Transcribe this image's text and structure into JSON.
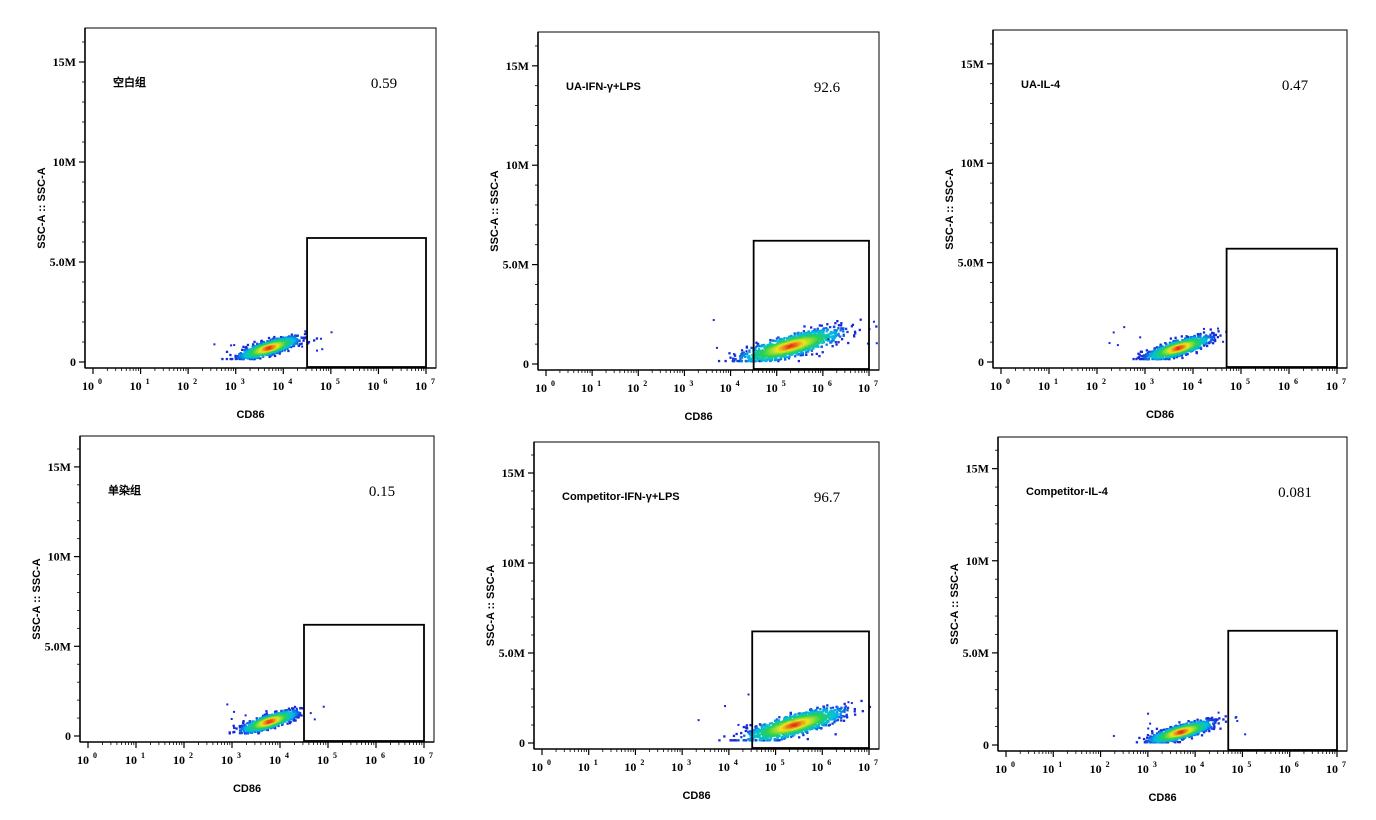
{
  "chart_data": [
    {
      "type": "scatter",
      "sample_label": "空白组",
      "gate_percent": "0.59",
      "xlabel": "CD86",
      "ylabel": "SSC-A :: SSC-A",
      "x_scale": "log",
      "xlim": [
        1,
        10000000
      ],
      "ylim": [
        0,
        16500000
      ],
      "x_tick_labels": [
        "10^0",
        "10^1",
        "10^2",
        "10^3",
        "10^4",
        "10^5",
        "10^6",
        "10^7"
      ],
      "y_tick_labels": [
        "0",
        "5.0M",
        "10M",
        "15M"
      ],
      "gate": {
        "x": [
          31623,
          10000000
        ],
        "y": [
          0,
          6200000
        ]
      },
      "population": {
        "center_x": 5000,
        "center_y": 700000,
        "spread_x_decades": 0.28,
        "spread_y": 350000
      }
    },
    {
      "type": "scatter",
      "sample_label": "UA-IFN-γ+LPS",
      "gate_percent": "92.6",
      "xlabel": "CD86",
      "ylabel": "SSC-A :: SSC-A",
      "x_scale": "log",
      "xlim": [
        1,
        10000000
      ],
      "ylim": [
        0,
        16500000
      ],
      "x_tick_labels": [
        "10^0",
        "10^1",
        "10^2",
        "10^3",
        "10^4",
        "10^5",
        "10^6",
        "10^7"
      ],
      "y_tick_labels": [
        "0",
        "5.0M",
        "10M",
        "15M"
      ],
      "gate": {
        "x": [
          31623,
          10000000
        ],
        "y": [
          0,
          6200000
        ]
      },
      "population": {
        "center_x": 200000,
        "center_y": 900000,
        "spread_x_decades": 0.5,
        "spread_y": 550000
      }
    },
    {
      "type": "scatter",
      "sample_label": "UA-IL-4",
      "gate_percent": "0.47",
      "xlabel": "CD86",
      "ylabel": "SSC-A :: SSC-A",
      "x_scale": "log",
      "xlim": [
        1,
        10000000
      ],
      "ylim": [
        0,
        16500000
      ],
      "x_tick_labels": [
        "10^0",
        "10^1",
        "10^2",
        "10^3",
        "10^4",
        "10^5",
        "10^6",
        "10^7"
      ],
      "y_tick_labels": [
        "0",
        "5.0M",
        "10M",
        "15M"
      ],
      "gate": {
        "x": [
          50119,
          10000000
        ],
        "y": [
          0,
          5700000
        ]
      },
      "population": {
        "center_x": 5000,
        "center_y": 700000,
        "spread_x_decades": 0.3,
        "spread_y": 380000
      }
    },
    {
      "type": "scatter",
      "sample_label": "单染组",
      "gate_percent": "0.15",
      "xlabel": "CD86",
      "ylabel": "SSC-A :: SSC-A",
      "x_scale": "log",
      "xlim": [
        1,
        10000000
      ],
      "ylim": [
        0,
        16500000
      ],
      "x_tick_labels": [
        "10^0",
        "10^1",
        "10^2",
        "10^3",
        "10^4",
        "10^5",
        "10^6",
        "10^7"
      ],
      "y_tick_labels": [
        "0",
        "5.0M",
        "10M",
        "15M"
      ],
      "gate": {
        "x": [
          31623,
          10000000
        ],
        "y": [
          0,
          6200000
        ]
      },
      "population": {
        "center_x": 6000,
        "center_y": 800000,
        "spread_x_decades": 0.26,
        "spread_y": 380000
      }
    },
    {
      "type": "scatter",
      "sample_label": "Competitor-IFN-γ+LPS",
      "gate_percent": "96.7",
      "xlabel": "CD86",
      "ylabel": "SSC-A :: SSC-A",
      "x_scale": "log",
      "xlim": [
        1,
        10000000
      ],
      "ylim": [
        0,
        16500000
      ],
      "x_tick_labels": [
        "10^0",
        "10^1",
        "10^2",
        "10^3",
        "10^4",
        "10^5",
        "10^6",
        "10^7"
      ],
      "y_tick_labels": [
        "0",
        "5.0M",
        "10M",
        "15M"
      ],
      "gate": {
        "x": [
          31623,
          10000000
        ],
        "y": [
          0,
          6200000
        ]
      },
      "population": {
        "center_x": 250000,
        "center_y": 1000000,
        "spread_x_decades": 0.48,
        "spread_y": 600000
      }
    },
    {
      "type": "scatter",
      "sample_label": "Competitor-IL-4",
      "gate_percent": "0.081",
      "xlabel": "CD86",
      "ylabel": "SSC-A :: SSC-A",
      "x_scale": "log",
      "xlim": [
        1,
        10000000
      ],
      "ylim": [
        0,
        16500000
      ],
      "x_tick_labels": [
        "10^0",
        "10^1",
        "10^2",
        "10^3",
        "10^4",
        "10^5",
        "10^6",
        "10^7"
      ],
      "y_tick_labels": [
        "0",
        "5.0M",
        "10M",
        "15M"
      ],
      "gate": {
        "x": [
          50119,
          10000000
        ],
        "y": [
          0,
          6200000
        ]
      },
      "population": {
        "center_x": 5000,
        "center_y": 700000,
        "spread_x_decades": 0.3,
        "spread_y": 380000
      }
    }
  ]
}
